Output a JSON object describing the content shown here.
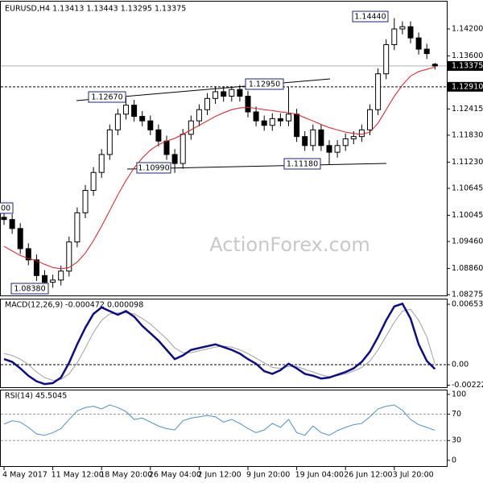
{
  "chart_data": {
    "type": "candlestick",
    "title": "EURUSD,H4  1.13413 1.13443 1.13295 1.13375",
    "watermark": "ActionForex.com",
    "categories": [
      "4 May 2017",
      null,
      null,
      null,
      null,
      null,
      "11 May 12:00",
      null,
      null,
      null,
      null,
      null,
      "18 May 20:00",
      null,
      null,
      null,
      null,
      null,
      "26 May 04:00",
      null,
      null,
      null,
      null,
      null,
      "2 Jun 12:00",
      null,
      null,
      null,
      null,
      null,
      "9 Jun 20:00",
      null,
      null,
      null,
      null,
      null,
      "19 Jun 04:00",
      null,
      null,
      null,
      null,
      null,
      "26 Jun 12:00",
      null,
      null,
      null,
      null,
      null,
      "3 Jul 20:00",
      null,
      null,
      null,
      null,
      null
    ],
    "ohlc": [
      [
        1.1,
        1.1012,
        1.0983,
        1.0995
      ],
      [
        1.0995,
        1.1007,
        1.0963,
        1.0975
      ],
      [
        1.0975,
        1.0987,
        1.0918,
        1.093
      ],
      [
        1.093,
        1.0942,
        1.0893,
        1.0905
      ],
      [
        1.0905,
        1.0917,
        1.0858,
        1.087
      ],
      [
        1.087,
        1.0882,
        1.0838,
        1.0855
      ],
      [
        1.0855,
        1.0872,
        1.0843,
        1.086
      ],
      [
        1.086,
        1.0892,
        1.0848,
        1.088
      ],
      [
        1.088,
        1.0957,
        1.0868,
        1.0945
      ],
      [
        1.0945,
        1.1022,
        1.0933,
        1.101
      ],
      [
        1.101,
        1.1072,
        1.0998,
        1.106
      ],
      [
        1.106,
        1.1112,
        1.1048,
        1.11
      ],
      [
        1.11,
        1.1152,
        1.1088,
        1.114
      ],
      [
        1.114,
        1.1207,
        1.1128,
        1.1195
      ],
      [
        1.1195,
        1.1242,
        1.1183,
        1.123
      ],
      [
        1.123,
        1.1267,
        1.1218,
        1.125
      ],
      [
        1.125,
        1.1262,
        1.1213,
        1.1225
      ],
      [
        1.1225,
        1.1237,
        1.1203,
        1.1215
      ],
      [
        1.1215,
        1.1227,
        1.1183,
        1.1195
      ],
      [
        1.1195,
        1.1207,
        1.1158,
        1.117
      ],
      [
        1.117,
        1.1182,
        1.1128,
        1.114
      ],
      [
        1.114,
        1.1152,
        1.1099,
        1.112
      ],
      [
        1.112,
        1.1197,
        1.1108,
        1.1185
      ],
      [
        1.1185,
        1.1227,
        1.1173,
        1.1215
      ],
      [
        1.1215,
        1.1252,
        1.1203,
        1.124
      ],
      [
        1.124,
        1.1277,
        1.1228,
        1.1265
      ],
      [
        1.1265,
        1.1292,
        1.1253,
        1.128
      ],
      [
        1.128,
        1.1292,
        1.1258,
        1.127
      ],
      [
        1.127,
        1.1292,
        1.1258,
        1.1285
      ],
      [
        1.1285,
        1.1295,
        1.1258,
        1.127
      ],
      [
        1.127,
        1.1282,
        1.1223,
        1.1235
      ],
      [
        1.1235,
        1.1247,
        1.1203,
        1.1215
      ],
      [
        1.1215,
        1.1227,
        1.1193,
        1.1205
      ],
      [
        1.1205,
        1.1232,
        1.1193,
        1.122
      ],
      [
        1.122,
        1.1232,
        1.1203,
        1.1215
      ],
      [
        1.1215,
        1.129,
        1.1203,
        1.123
      ],
      [
        1.123,
        1.1242,
        1.1168,
        1.118
      ],
      [
        1.118,
        1.1192,
        1.1148,
        1.116
      ],
      [
        1.116,
        1.1207,
        1.1148,
        1.1195
      ],
      [
        1.1195,
        1.1207,
        1.1148,
        1.116
      ],
      [
        1.116,
        1.1172,
        1.1118,
        1.1145
      ],
      [
        1.1145,
        1.1172,
        1.1133,
        1.116
      ],
      [
        1.116,
        1.1187,
        1.1148,
        1.1175
      ],
      [
        1.1175,
        1.1192,
        1.1163,
        1.118
      ],
      [
        1.118,
        1.1207,
        1.1168,
        1.1195
      ],
      [
        1.1195,
        1.1252,
        1.1183,
        1.124
      ],
      [
        1.124,
        1.1332,
        1.1228,
        1.132
      ],
      [
        1.132,
        1.1397,
        1.1308,
        1.1385
      ],
      [
        1.1385,
        1.1444,
        1.1373,
        1.142
      ],
      [
        1.142,
        1.1437,
        1.1408,
        1.1425
      ],
      [
        1.1425,
        1.1437,
        1.1388,
        1.14
      ],
      [
        1.14,
        1.1412,
        1.1363,
        1.1375
      ],
      [
        1.1375,
        1.1387,
        1.1353,
        1.1365
      ],
      [
        1.13413,
        1.13443,
        1.13295,
        1.13375
      ]
    ],
    "ma_values": [
      1.0935,
      1.0925,
      1.0915,
      1.0908,
      1.0903,
      1.0895,
      1.0888,
      1.0885,
      1.0888,
      1.09,
      1.092,
      1.0948,
      1.098,
      1.1015,
      1.105,
      1.1082,
      1.111,
      1.1132,
      1.115,
      1.1162,
      1.117,
      1.1176,
      1.1185,
      1.1195,
      1.1205,
      1.1215,
      1.1225,
      1.1233,
      1.124,
      1.1244,
      1.1245,
      1.1243,
      1.124,
      1.1238,
      1.1235,
      1.1233,
      1.123,
      1.1222,
      1.1215,
      1.1207,
      1.12,
      1.1195,
      1.119,
      1.1187,
      1.1185,
      1.119,
      1.121,
      1.124,
      1.127,
      1.1295,
      1.1315,
      1.1325,
      1.133,
      1.1335
    ],
    "ma_color": "#e0191f",
    "ylim": [
      1.08239,
      1.1481
    ],
    "yticks": [
      {
        "value": 1.142,
        "label": "1.14200"
      },
      {
        "value": 1.136,
        "label": "1.13600"
      },
      {
        "value": 1.12415,
        "label": "1.12415"
      },
      {
        "value": 1.1183,
        "label": "1.11830"
      },
      {
        "value": 1.1123,
        "label": "1.11230"
      },
      {
        "value": 1.10645,
        "label": "1.10645"
      },
      {
        "value": 1.10045,
        "label": "1.10045"
      },
      {
        "value": 1.0946,
        "label": "1.09460"
      },
      {
        "value": 1.0886,
        "label": "1.08860"
      },
      {
        "value": 1.08275,
        "label": "1.08275"
      }
    ],
    "price_lines": [
      {
        "value": 1.13375,
        "label": "1.13375",
        "style": "solid"
      },
      {
        "value": 1.1291,
        "label": "1.12910",
        "style": "dashed"
      }
    ],
    "annotations": [
      "1.14440",
      "1.12950",
      "1.12670",
      "1.10990",
      "1.11180",
      "1.08380",
      "00"
    ],
    "macd": {
      "title": "MACD(12,26,9) -0.000472 0.000098",
      "values": [
        0.0006,
        0.0003,
        -0.0004,
        -0.0012,
        -0.0018,
        -0.0021,
        -0.002,
        -0.0014,
        0.0002,
        0.0022,
        0.004,
        0.0055,
        0.0062,
        0.0058,
        0.0054,
        0.0058,
        0.0052,
        0.0042,
        0.0034,
        0.0026,
        0.0016,
        0.0006,
        0.001,
        0.0016,
        0.0018,
        0.002,
        0.0022,
        0.0019,
        0.0016,
        0.0012,
        0.0006,
        0.0001,
        -0.0007,
        -0.001,
        -0.0006,
        0.0001,
        -0.0004,
        -0.001,
        -0.0012,
        -0.0015,
        -0.0014,
        -0.0011,
        -0.0008,
        -0.0004,
        0.0003,
        0.0014,
        0.003,
        0.0048,
        0.0063,
        0.0066,
        0.005,
        0.0022,
        0.0004,
        -0.000472
      ],
      "signal": [
        0.0012,
        0.001,
        0.0006,
        0.0,
        -0.0008,
        -0.0014,
        -0.0017,
        -0.0016,
        -0.001,
        0.0002,
        0.0018,
        0.0035,
        0.0048,
        0.0055,
        0.0056,
        0.0056,
        0.0055,
        0.005,
        0.0044,
        0.0036,
        0.0028,
        0.0018,
        0.0013,
        0.0013,
        0.0015,
        0.0017,
        0.0019,
        0.002,
        0.0019,
        0.0016,
        0.0012,
        0.0007,
        0.0002,
        -0.0003,
        -0.0004,
        -0.0002,
        -0.0002,
        -0.0005,
        -0.0008,
        -0.0011,
        -0.0013,
        -0.0012,
        -0.001,
        -0.0007,
        -0.0003,
        0.0004,
        0.0016,
        0.0031,
        0.0046,
        0.0058,
        0.006,
        0.0048,
        0.003,
        9.8e-05
      ],
      "color": "#0c0c8a",
      "signal_color": "#a0a0a0",
      "ylim": [
        -0.00253,
        0.00706
      ],
      "yticks": [
        0.006534,
        {
          "value": 0,
          "label": "0.00"
        },
        -0.002226
      ]
    },
    "rsi": {
      "title": "RSI(14) 45.5045",
      "values": [
        55,
        60,
        58,
        50,
        40,
        38,
        42,
        48,
        62,
        75,
        80,
        82,
        78,
        84,
        80,
        74,
        62,
        64,
        58,
        52,
        48,
        46,
        60,
        64,
        66,
        68,
        66,
        58,
        62,
        56,
        48,
        42,
        46,
        56,
        50,
        62,
        42,
        38,
        52,
        42,
        38,
        45,
        50,
        54,
        56,
        66,
        78,
        82,
        84,
        76,
        62,
        54,
        50,
        45.5045
      ],
      "color": "#4a90d0",
      "ylim": [
        -10,
        106
      ],
      "yticks": [
        100,
        70,
        30,
        0
      ],
      "levels": [
        70,
        30
      ]
    }
  }
}
